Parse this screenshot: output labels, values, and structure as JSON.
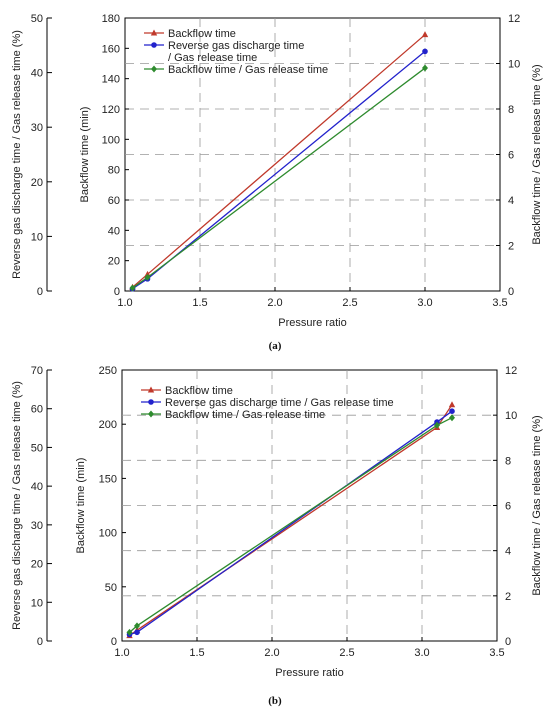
{
  "chart_data": [
    {
      "type": "line",
      "caption": "(a)",
      "xlabel": "Pressure ratio",
      "ylabel_left": "Backflow time (min)",
      "ylabel_far_left": "Reverse gas discharge time / Gas release time (%)",
      "ylabel_right": "Backflow time / Gas release time (%)",
      "xlim": [
        1.0,
        3.5
      ],
      "xticks": [
        "1.0",
        "1.5",
        "2.0",
        "2.5",
        "3.0",
        "3.5"
      ],
      "ylim_left": [
        0,
        180
      ],
      "yticks_left": [
        "0",
        "20",
        "40",
        "60",
        "80",
        "100",
        "120",
        "140",
        "160",
        "180"
      ],
      "ylim_far_left": [
        0,
        50
      ],
      "yticks_far_left": [
        "0",
        "10",
        "20",
        "30",
        "40",
        "50"
      ],
      "ylim_right": [
        0,
        12
      ],
      "yticks_right": [
        "0",
        "2",
        "4",
        "6",
        "8",
        "10",
        "12"
      ],
      "grid": "dashed",
      "legend_position": "top-left",
      "series": [
        {
          "name": "Backflow time",
          "color": "#c0392b",
          "marker": "triangle",
          "x": [
            1.05,
            1.15,
            3.0
          ],
          "y": [
            2.5,
            11,
            169
          ]
        },
        {
          "name": "Reverse gas discharge time / Gas release time",
          "legend_lines": [
            "Reverse gas discharge time",
            "/ Gas release time"
          ],
          "color": "#2222cc",
          "marker": "circle",
          "x": [
            1.05,
            1.15,
            3.0
          ],
          "y": [
            1.5,
            8,
            158
          ]
        },
        {
          "name": "Backflow time / Gas release time",
          "color": "#2e8b2e",
          "marker": "diamond",
          "x": [
            1.05,
            1.15,
            3.0
          ],
          "y": [
            2.0,
            9,
            147
          ]
        }
      ]
    },
    {
      "type": "line",
      "caption": "(b)",
      "xlabel": "Pressure ratio",
      "ylabel_left": "Backflow time (min)",
      "ylabel_far_left": "Reverse gas discharge time / Gas release time (%)",
      "ylabel_right": "Backflow time / Gas release time (%)",
      "xlim": [
        1.0,
        3.5
      ],
      "xticks": [
        "1.0",
        "1.5",
        "2.0",
        "2.5",
        "3.0",
        "3.5"
      ],
      "ylim_left": [
        0,
        250
      ],
      "yticks_left": [
        "0",
        "50",
        "100",
        "150",
        "200",
        "250"
      ],
      "ylim_far_left": [
        0,
        70
      ],
      "yticks_far_left": [
        "0",
        "10",
        "20",
        "30",
        "40",
        "50",
        "60",
        "70"
      ],
      "ylim_right": [
        0,
        12
      ],
      "yticks_right": [
        "0",
        "2",
        "4",
        "6",
        "8",
        "10",
        "12"
      ],
      "grid": "dashed",
      "legend_position": "top-left",
      "series": [
        {
          "name": "Backflow time",
          "legend_lines": [
            "Backflow time"
          ],
          "color": "#c0392b",
          "marker": "triangle",
          "x": [
            1.05,
            1.1,
            3.1,
            3.2
          ],
          "y": [
            5,
            10,
            197,
            218
          ]
        },
        {
          "name": "Reverse gas discharge time / Gas release time",
          "legend_lines": [
            "Reverse gas discharge time / Gas release time"
          ],
          "color": "#2222cc",
          "marker": "circle",
          "x": [
            1.05,
            1.1,
            3.1,
            3.2
          ],
          "y": [
            6,
            8,
            202,
            212
          ]
        },
        {
          "name": "Backflow time / Gas release time",
          "legend_lines": [
            "Backflow time / Gas release time"
          ],
          "color": "#2e8b2e",
          "marker": "diamond",
          "x": [
            1.05,
            1.1,
            3.1,
            3.2
          ],
          "y": [
            8,
            14,
            199,
            206
          ]
        }
      ]
    }
  ]
}
